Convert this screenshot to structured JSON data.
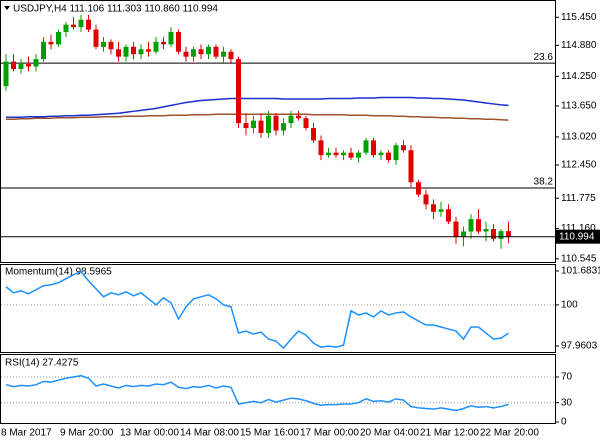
{
  "chart_data": [
    {
      "type": "candlestick",
      "title": "USDJPY,H4  111.106 111.303 110.860 110.994",
      "categories": [
        "8 Mar 2017",
        null,
        null,
        null,
        null,
        null,
        null,
        null,
        "9 Mar 20:00",
        null,
        null,
        null,
        null,
        null,
        null,
        null,
        "13 Mar 00:00",
        null,
        null,
        null,
        null,
        null,
        null,
        null,
        "14 Mar 08:00",
        null,
        null,
        null,
        null,
        null,
        null,
        null,
        "15 Mar 16:00",
        null,
        null,
        null,
        null,
        null,
        null,
        null,
        "17 Mar 00:00",
        null,
        null,
        null,
        null,
        null,
        null,
        null,
        "20 Mar 04:00",
        null,
        null,
        null,
        null,
        null,
        null,
        null,
        "21 Mar 12:00",
        null,
        null,
        null,
        null,
        null,
        null,
        null,
        "22 Mar 20:00",
        null,
        null,
        null
      ],
      "open": [
        114.05,
        114.55,
        114.4,
        114.5,
        114.45,
        114.6,
        114.95,
        114.9,
        115.15,
        115.3,
        115.25,
        115.4,
        115.2,
        114.85,
        114.95,
        114.8,
        114.65,
        114.85,
        114.7,
        114.8,
        114.75,
        114.95,
        114.9,
        115.15,
        114.75,
        114.65,
        114.8,
        114.7,
        114.85,
        114.65,
        114.75,
        114.6,
        113.3,
        113.2,
        113.35,
        113.1,
        113.45,
        113.15,
        113.3,
        113.45,
        113.4,
        113.2,
        112.95,
        112.65,
        112.7,
        112.65,
        112.7,
        112.6,
        112.7,
        112.95,
        112.65,
        112.7,
        112.55,
        112.85,
        112.75,
        112.1,
        111.85,
        111.65,
        111.5,
        111.55,
        111.3,
        111.0,
        111.1,
        111.35,
        111.1,
        111.15,
        110.95,
        111.106
      ],
      "high": [
        114.7,
        114.7,
        114.6,
        114.65,
        114.7,
        115.05,
        115.1,
        115.2,
        115.35,
        115.45,
        115.5,
        115.5,
        115.3,
        115.05,
        115.0,
        114.95,
        114.9,
        114.95,
        114.9,
        114.95,
        115.05,
        115.05,
        115.25,
        115.2,
        114.85,
        114.85,
        114.9,
        114.9,
        114.9,
        114.85,
        114.8,
        114.65,
        113.5,
        113.45,
        113.5,
        113.55,
        113.5,
        113.4,
        113.55,
        113.55,
        113.45,
        113.3,
        113.05,
        112.8,
        112.8,
        112.75,
        112.8,
        112.75,
        113.0,
        113.0,
        112.75,
        112.75,
        112.9,
        112.95,
        112.85,
        112.15,
        111.95,
        111.75,
        111.7,
        111.65,
        111.4,
        111.2,
        111.45,
        111.55,
        111.3,
        111.25,
        111.15,
        111.303
      ],
      "low": [
        113.95,
        114.35,
        114.3,
        114.35,
        114.35,
        114.55,
        114.8,
        114.85,
        115.05,
        115.2,
        115.15,
        115.15,
        114.8,
        114.75,
        114.7,
        114.55,
        114.55,
        114.6,
        114.6,
        114.65,
        114.7,
        114.8,
        114.85,
        114.7,
        114.55,
        114.55,
        114.6,
        114.6,
        114.6,
        114.5,
        114.5,
        113.2,
        113.05,
        113.1,
        113.0,
        113.0,
        113.05,
        113.05,
        113.2,
        113.35,
        113.15,
        112.9,
        112.55,
        112.6,
        112.6,
        112.55,
        112.55,
        112.5,
        112.65,
        112.6,
        112.55,
        112.5,
        112.45,
        112.7,
        112.0,
        111.8,
        111.55,
        111.35,
        111.4,
        111.25,
        110.85,
        110.8,
        110.95,
        111.05,
        110.9,
        110.9,
        110.75,
        110.86
      ],
      "close": [
        114.55,
        114.4,
        114.5,
        114.45,
        114.6,
        114.95,
        114.9,
        115.15,
        115.3,
        115.25,
        115.4,
        115.2,
        114.85,
        114.95,
        114.8,
        114.65,
        114.85,
        114.7,
        114.8,
        114.75,
        114.95,
        114.9,
        115.15,
        114.75,
        114.65,
        114.8,
        114.7,
        114.85,
        114.65,
        114.75,
        114.6,
        113.3,
        113.2,
        113.35,
        113.1,
        113.45,
        113.15,
        113.3,
        113.45,
        113.4,
        113.2,
        112.95,
        112.65,
        112.7,
        112.65,
        112.7,
        112.6,
        112.7,
        112.95,
        112.65,
        112.7,
        112.55,
        112.85,
        112.75,
        112.1,
        111.85,
        111.65,
        111.5,
        111.55,
        111.3,
        111.0,
        111.1,
        111.35,
        111.1,
        111.15,
        110.95,
        111.106,
        110.994
      ],
      "up_color": "#00a000",
      "down_color": "#e00000",
      "series": [
        {
          "color": "#1c2fcf",
          "values": [
            113.42,
            113.42,
            113.42,
            113.43,
            113.43,
            113.43,
            113.44,
            113.44,
            113.45,
            113.45,
            113.46,
            113.46,
            113.47,
            113.48,
            113.49,
            113.5,
            113.52,
            113.54,
            113.56,
            113.58,
            113.6,
            113.63,
            113.66,
            113.69,
            113.72,
            113.74,
            113.76,
            113.77,
            113.78,
            113.79,
            113.8,
            113.8,
            113.8,
            113.8,
            113.8,
            113.8,
            113.8,
            113.79,
            113.79,
            113.79,
            113.79,
            113.79,
            113.79,
            113.8,
            113.8,
            113.8,
            113.8,
            113.81,
            113.81,
            113.81,
            113.82,
            113.82,
            113.82,
            113.82,
            113.82,
            113.81,
            113.81,
            113.8,
            113.8,
            113.79,
            113.78,
            113.77,
            113.75,
            113.73,
            113.71,
            113.69,
            113.67,
            113.66
          ]
        },
        {
          "color": "#a0522d",
          "values": [
            113.38,
            113.38,
            113.39,
            113.39,
            113.4,
            113.4,
            113.4,
            113.41,
            113.41,
            113.41,
            113.42,
            113.42,
            113.42,
            113.43,
            113.43,
            113.43,
            113.44,
            113.44,
            113.44,
            113.45,
            113.45,
            113.45,
            113.46,
            113.46,
            113.46,
            113.47,
            113.47,
            113.47,
            113.48,
            113.48,
            113.48,
            113.48,
            113.48,
            113.48,
            113.48,
            113.48,
            113.48,
            113.48,
            113.48,
            113.48,
            113.48,
            113.47,
            113.47,
            113.47,
            113.47,
            113.47,
            113.46,
            113.46,
            113.46,
            113.45,
            113.45,
            113.45,
            113.44,
            113.44,
            113.43,
            113.43,
            113.42,
            113.42,
            113.41,
            113.41,
            113.4,
            113.4,
            113.39,
            113.39,
            113.38,
            113.38,
            113.37,
            113.36
          ]
        }
      ],
      "levels": [
        {
          "value": 114.518,
          "label": "23.6"
        },
        {
          "value": 111.984,
          "label": "38.2"
        }
      ],
      "last_price": 110.994,
      "ylim": [
        110.48,
        115.76
      ],
      "yticks": [
        {
          "value": 115.45,
          "label": "115.450"
        },
        {
          "value": 114.88,
          "label": "114.880"
        },
        {
          "value": 114.25,
          "label": "114.250"
        },
        {
          "value": 113.65,
          "label": "113.650"
        },
        {
          "value": 113.02,
          "label": "113.020"
        },
        {
          "value": 112.45,
          "label": "112.450"
        },
        111.775,
        {
          "value": 111.16,
          "label": "111.160"
        },
        110.545
      ]
    },
    {
      "type": "line",
      "title": "Momentum(14) 98.5965",
      "color": "#1e90ff",
      "values": [
        100.9,
        100.6,
        100.7,
        100.55,
        100.75,
        100.95,
        101.0,
        101.1,
        101.3,
        101.5,
        101.65,
        101.2,
        100.8,
        100.4,
        100.6,
        100.5,
        100.65,
        100.45,
        100.6,
        100.3,
        100.0,
        100.35,
        100.1,
        99.3,
        99.9,
        100.3,
        100.4,
        100.5,
        100.3,
        100.0,
        99.9,
        98.6,
        98.7,
        98.55,
        98.65,
        98.3,
        98.2,
        97.85,
        98.3,
        98.7,
        98.5,
        98.1,
        97.9,
        97.95,
        97.9,
        98.0,
        99.7,
        99.5,
        99.6,
        99.4,
        99.7,
        99.5,
        99.6,
        99.65,
        99.4,
        99.2,
        99.0,
        99.0,
        98.9,
        98.8,
        98.7,
        98.3,
        98.9,
        98.9,
        98.6,
        98.3,
        98.35,
        98.5965
      ],
      "levels": [
        100
      ],
      "ylim": [
        97.66,
        101.98
      ],
      "yticks": [
        101.6831,
        100,
        97.9603
      ]
    },
    {
      "type": "line",
      "title": "RSI(14) 27.4275",
      "color": "#1e90ff",
      "values": [
        58,
        55,
        57,
        56,
        58,
        63,
        62,
        65,
        68,
        70,
        72,
        68,
        56,
        59,
        56,
        53,
        57,
        55,
        57,
        56,
        59,
        58,
        62,
        54,
        52,
        55,
        54,
        57,
        53,
        56,
        54,
        28,
        30,
        32,
        30,
        35,
        31,
        34,
        37,
        36,
        33,
        29,
        26,
        27,
        27,
        28,
        28,
        30,
        36,
        32,
        33,
        31,
        36,
        34,
        24,
        22,
        21,
        20,
        22,
        20,
        18,
        21,
        25,
        23,
        24,
        22,
        24,
        27.4275
      ],
      "levels": [
        70,
        30
      ],
      "ylim": [
        0,
        100
      ],
      "yticks": [
        70,
        30,
        0
      ]
    }
  ]
}
